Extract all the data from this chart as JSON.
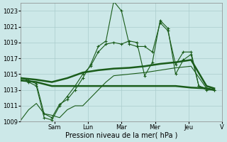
{
  "xlabel": "Pression niveau de la mer( hPa )",
  "bg_color": "#cce8e8",
  "grid_color": "#aacccc",
  "line_color": "#1a5c1a",
  "ylim": [
    1009,
    1024
  ],
  "yticks": [
    1009,
    1011,
    1013,
    1015,
    1017,
    1019,
    1021,
    1023
  ],
  "xlim": [
    0,
    13
  ],
  "day_labels": [
    "Sam",
    "Lun",
    "Mar",
    "Mer",
    "Jeu",
    "V"
  ],
  "day_positions": [
    2.17,
    4.33,
    6.5,
    8.67,
    10.83,
    13.0
  ],
  "series1": {
    "x": [
      0,
      0.5,
      1.0,
      1.5,
      2.0,
      2.5,
      3.0,
      3.5,
      4.0,
      4.5,
      5.0,
      5.5,
      6.0,
      6.5,
      7.0,
      7.5,
      8.0,
      8.5,
      9.0,
      9.5,
      10.0,
      10.5,
      11.0,
      11.5,
      12.0,
      12.5
    ],
    "y": [
      1014.5,
      1014.2,
      1013.8,
      1010.0,
      1009.5,
      1011.2,
      1011.8,
      1013.0,
      1014.5,
      1016.2,
      1018.5,
      1019.2,
      1024.2,
      1023.0,
      1018.8,
      1018.5,
      1018.5,
      1017.8,
      1021.5,
      1020.5,
      1016.2,
      1017.8,
      1017.8,
      1013.5,
      1013.2,
      1013.0
    ]
  },
  "series2": {
    "x": [
      0,
      0.5,
      1.0,
      1.5,
      2.0,
      2.5,
      3.0,
      3.5,
      4.0,
      4.5,
      5.0,
      5.5,
      6.0,
      6.5,
      7.0,
      7.5,
      8.0,
      8.5,
      9.0,
      9.5,
      10.0,
      10.5,
      11.0,
      11.5,
      12.0,
      12.5
    ],
    "y": [
      1014.3,
      1014.0,
      1013.5,
      1009.5,
      1009.2,
      1011.0,
      1012.2,
      1013.5,
      1015.0,
      1016.0,
      1017.8,
      1018.8,
      1019.0,
      1018.8,
      1019.2,
      1019.0,
      1014.8,
      1016.5,
      1021.8,
      1020.8,
      1015.0,
      1016.8,
      1017.5,
      1013.5,
      1013.0,
      1013.0
    ]
  },
  "series3": {
    "x": [
      0,
      1.0,
      2.0,
      3.0,
      4.0,
      5.0,
      6.0,
      7.0,
      8.0,
      9.0,
      10.0,
      11.0,
      12.0,
      12.5
    ],
    "y": [
      1014.5,
      1014.3,
      1014.0,
      1014.5,
      1015.2,
      1015.5,
      1015.7,
      1015.8,
      1016.0,
      1016.3,
      1016.5,
      1016.8,
      1013.5,
      1013.2
    ]
  },
  "series4": {
    "x": [
      0,
      1.0,
      2.0,
      3.0,
      4.0,
      5.0,
      6.0,
      7.0,
      8.0,
      9.0,
      10.0,
      11.0,
      12.0,
      12.5
    ],
    "y": [
      1014.2,
      1014.0,
      1013.5,
      1013.5,
      1013.5,
      1013.5,
      1013.5,
      1013.5,
      1013.5,
      1013.5,
      1013.5,
      1013.3,
      1013.2,
      1013.0
    ]
  },
  "series5": {
    "x": [
      0,
      0.5,
      1.0,
      1.5,
      2.0,
      2.5,
      3.0,
      3.5,
      4.0,
      4.5,
      5.0,
      5.5,
      6.0,
      7.0,
      8.0,
      9.0,
      10.0,
      11.0,
      12.0,
      12.5
    ],
    "y": [
      1009.2,
      1010.5,
      1011.3,
      1010.0,
      1009.8,
      1009.5,
      1010.5,
      1011.0,
      1011.0,
      1012.0,
      1013.0,
      1014.0,
      1014.8,
      1015.0,
      1015.2,
      1015.5,
      1015.8,
      1016.0,
      1013.2,
      1013.0
    ]
  }
}
